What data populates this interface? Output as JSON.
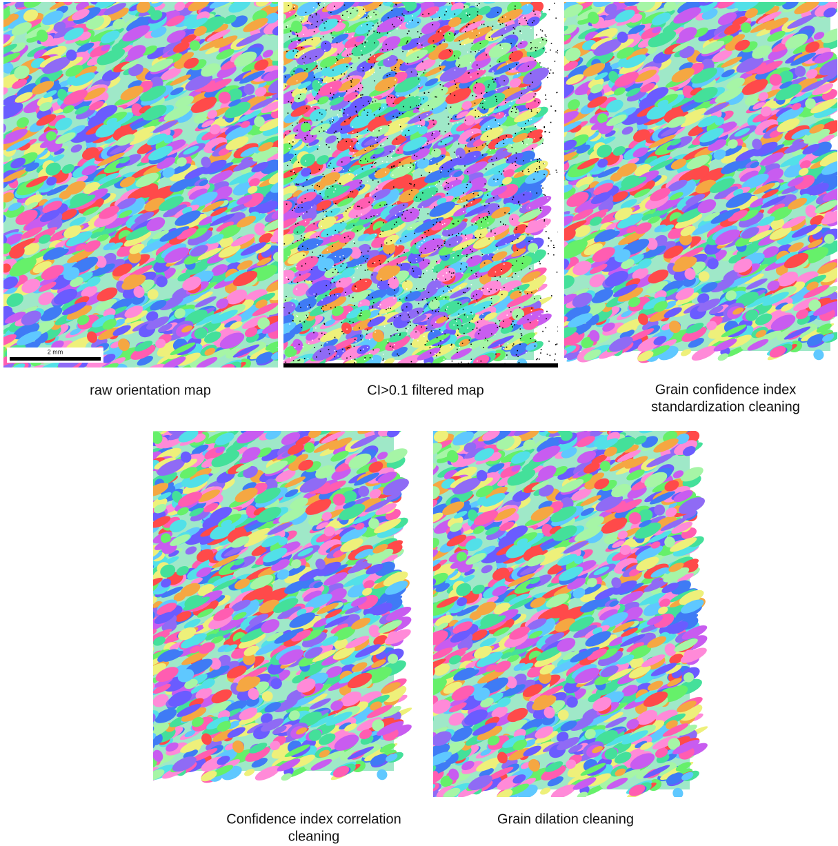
{
  "scale_bar": "2 mm",
  "panels": [
    {
      "label": [
        "raw orientation map"
      ]
    },
    {
      "label": [
        "CI>0.1 filtered map"
      ]
    },
    {
      "label": [
        "Grain confidence index",
        "standardization cleaning"
      ]
    },
    {
      "label": [
        "Confidence index correlation",
        "cleaning"
      ]
    },
    {
      "label": [
        "Grain dilation cleaning"
      ]
    }
  ]
}
